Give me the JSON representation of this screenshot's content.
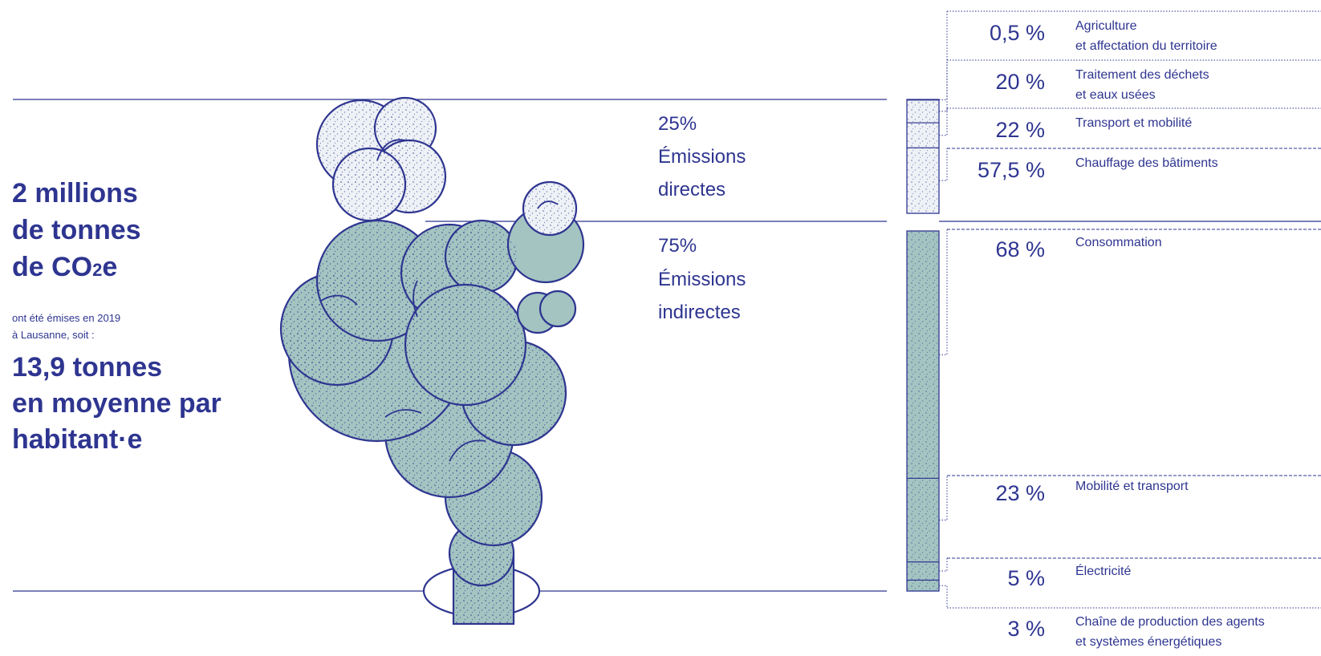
{
  "headline": {
    "line1": "2 millions",
    "line2": "de tonnes",
    "line3_prefix": "de CO",
    "line3_sub": "2",
    "line3_suffix": "e"
  },
  "subline": {
    "line1": "ont été émises en 2019",
    "line2": "à Lausanne, soit :"
  },
  "per_inhabitant": {
    "line1": "13,9 tonnes",
    "line2": "en moyenne par",
    "line3": "habitant·e"
  },
  "colors": {
    "ink": "#2e3590",
    "direct_fill": "#eef1f5",
    "indirect_fill": "#a3c4c1"
  },
  "chart_data": {
    "type": "bar",
    "stacked": true,
    "groups": [
      {
        "percent_label": "25%",
        "name_line1": "Émissions",
        "name_line2": "directes",
        "value": 25,
        "color": "#eef1f5",
        "segments": [
          {
            "label_pct": "0,5 %",
            "value": 0.5,
            "line1": "Agriculture",
            "line2": "et affectation du territoire"
          },
          {
            "label_pct": "20 %",
            "value": 20,
            "line1": "Traitement des déchets",
            "line2": "et eaux usées"
          },
          {
            "label_pct": "22 %",
            "value": 22,
            "line1": "Transport et mobilité",
            "line2": ""
          },
          {
            "label_pct": "57,5 %",
            "value": 57.5,
            "line1": "Chauffage des bâtiments",
            "line2": ""
          }
        ]
      },
      {
        "percent_label": "75%",
        "name_line1": "Émissions",
        "name_line2": "indirectes",
        "value": 75,
        "color": "#a3c4c1",
        "segments": [
          {
            "label_pct": "68 %",
            "value": 68,
            "line1": "Consommation",
            "line2": ""
          },
          {
            "label_pct": "23 %",
            "value": 23,
            "line1": "Mobilité et transport",
            "line2": ""
          },
          {
            "label_pct": "5 %",
            "value": 5,
            "line1": "Électricité",
            "line2": ""
          },
          {
            "label_pct": "3 %",
            "value": 3,
            "line1": "Chaîne de production des agents",
            "line2": "et systèmes énergétiques"
          }
        ]
      }
    ]
  }
}
